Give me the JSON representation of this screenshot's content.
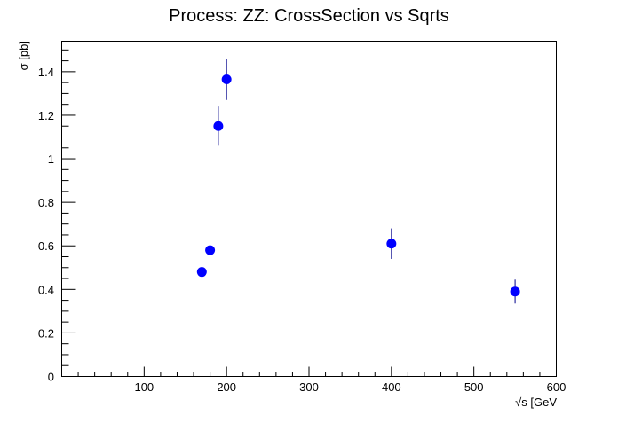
{
  "chart_data": {
    "type": "scatter",
    "title": "Process: ZZ: CrossSection vs Sqrts",
    "xlabel": "√s [GeV",
    "ylabel": "σ [pb]",
    "xlim": [
      0,
      600
    ],
    "ylim": [
      0,
      1.54
    ],
    "xticks": [
      100,
      200,
      300,
      400,
      500,
      600
    ],
    "xtick_labels": [
      "100",
      "200",
      "300",
      "400",
      "500",
      "600"
    ],
    "yticks": [
      0,
      0.2,
      0.4,
      0.6,
      0.8,
      1.0,
      1.2,
      1.4
    ],
    "ytick_labels": [
      "0",
      "0.2",
      "0.4",
      "0.6",
      "0.8",
      "1",
      "1.2",
      "1.4"
    ],
    "grid": false,
    "legend": "none",
    "marker_color": "#0000ff",
    "points": [
      {
        "x": 170,
        "y": 0.48,
        "err": 0.0
      },
      {
        "x": 180,
        "y": 0.58,
        "err": 0.0
      },
      {
        "x": 190,
        "y": 1.15,
        "err": 0.09
      },
      {
        "x": 200,
        "y": 1.365,
        "err": 0.095
      },
      {
        "x": 400,
        "y": 0.61,
        "err": 0.07
      },
      {
        "x": 550,
        "y": 0.39,
        "err": 0.055
      }
    ]
  }
}
